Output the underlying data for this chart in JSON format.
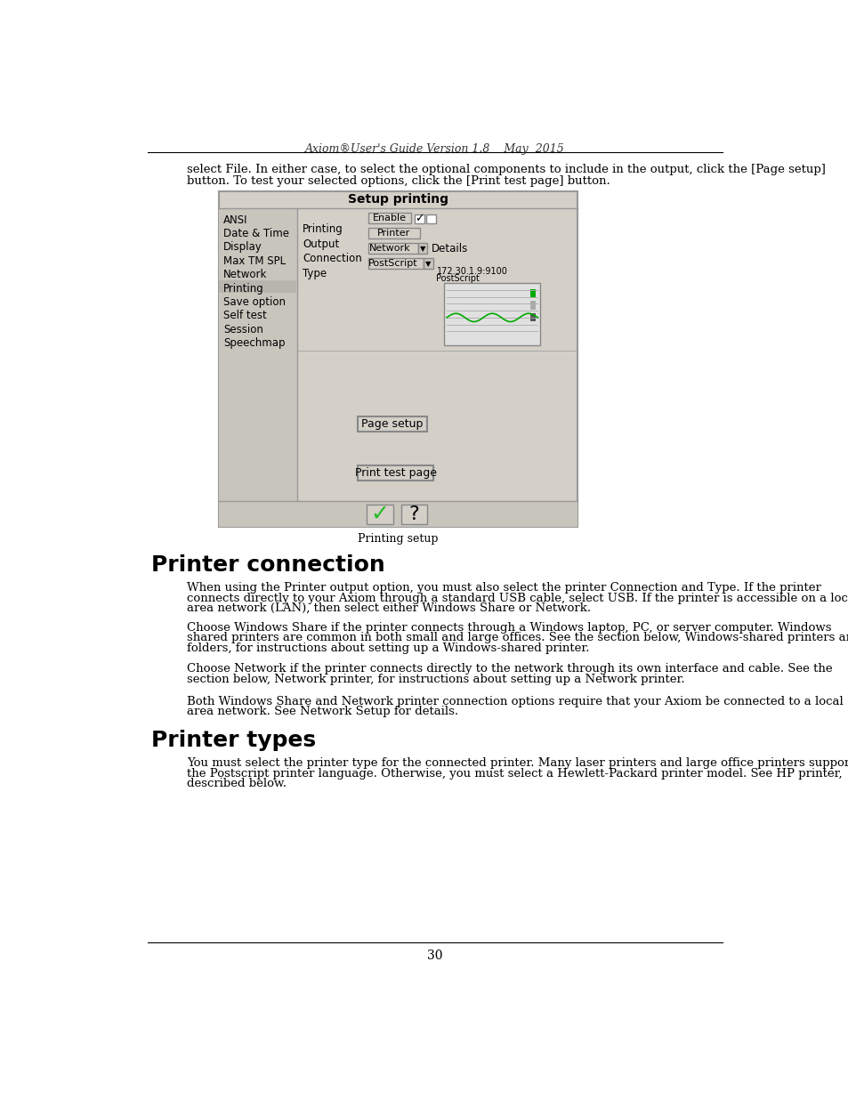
{
  "header_text": "Axiom®User's Guide Version 1.8    May  2015",
  "page_number": "30",
  "intro_text": "select File. In either case, to select the optional components to include in the output, click the [Page setup]\nbutton. To test your selected options, click the [Print test page] button.",
  "caption": "Printing setup",
  "section1_title": "Printer connection",
  "section1_para1": "When using the Printer output option, you must also select the printer Connection and Type. If the printer\nconnects directly to your Axiom through a standard USB cable, select USB. If the printer is accessible on a local\narea network (LAN), then select either Windows Share or Network.",
  "section1_para2": "Choose Windows Share if the printer connects through a Windows laptop, PC, or server computer. Windows\nshared printers are common in both small and large offices. See the section below, Windows-shared printers and\nfolders, for instructions about setting up a Windows-shared printer.",
  "section1_para3": "Choose Network if the printer connects directly to the network through its own interface and cable. See the\nsection below, Network printer, for instructions about setting up a Network printer.",
  "section1_para4": "Both Windows Share and Network printer connection options require that your Axiom be connected to a local\narea network. See Network Setup for details.",
  "section2_title": "Printer types",
  "section2_para1": "You must select the printer type for the connected printer. Many laser printers and large office printers support\nthe Postscript printer language. Otherwise, you must select a Hewlett-Packard printer model. See HP printer,\ndescribed below.",
  "bg_color": "#ffffff",
  "text_color": "#000000",
  "menu_items": [
    "ANSI",
    "Date & Time",
    "Display",
    "Max TM SPL",
    "Network",
    "Printing",
    "Save option",
    "Self test",
    "Session",
    "Speechmap"
  ],
  "dialog_bg": "#d4d0c8",
  "dialog_panel": "#c8c5bd",
  "dialog_edge": "#999999"
}
